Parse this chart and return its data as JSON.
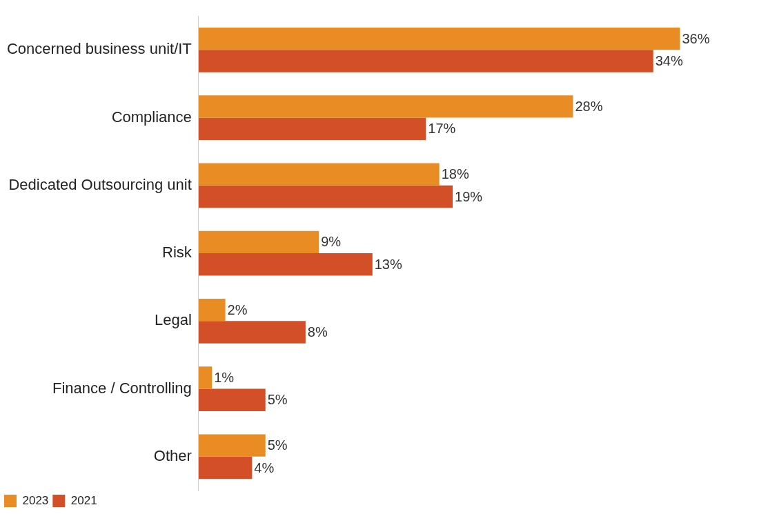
{
  "chart_data": {
    "type": "bar",
    "orientation": "horizontal",
    "categories": [
      "Concerned business unit/IT",
      "Compliance",
      "Dedicated Outsourcing unit",
      "Risk",
      "Legal",
      "Finance / Controlling",
      "Other"
    ],
    "series": [
      {
        "name": "2023",
        "color": "#e98c23",
        "values": [
          36,
          28,
          18,
          9,
          2,
          1,
          5
        ],
        "value_labels": [
          "36%",
          "28%",
          "18%",
          "9%",
          "2%",
          "1%",
          "5%"
        ]
      },
      {
        "name": "2021",
        "color": "#d24f27",
        "values": [
          34,
          17,
          19,
          13,
          8,
          5,
          4
        ],
        "value_labels": [
          "34%",
          "17%",
          "19%",
          "13%",
          "8%",
          "5%",
          "4%"
        ]
      }
    ],
    "grid": false,
    "legend": "bottom left"
  }
}
